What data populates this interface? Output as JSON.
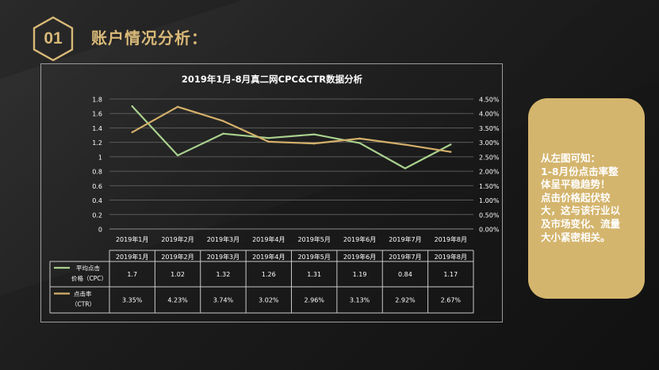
{
  "header": {
    "badge_number": "01",
    "title": "账户情况分析："
  },
  "chart_data": {
    "type": "line",
    "title": "2019年1月-8月真二网CPC&CTR数据分析",
    "categories": [
      "2019年1月",
      "2019年2月",
      "2019年3月",
      "2019年4月",
      "2019年5月",
      "2019年6月",
      "2019年7月",
      "2019年8月"
    ],
    "y_left": {
      "min": 0,
      "max": 1.8,
      "step": 0.2,
      "ticks": [
        "0",
        "0.2",
        "0.4",
        "0.6",
        "0.8",
        "1",
        "1.2",
        "1.4",
        "1.6",
        "1.8"
      ]
    },
    "y_right": {
      "min": 0,
      "max": 4.5,
      "step": 0.5,
      "unit": "%",
      "ticks": [
        "0.00%",
        "0.50%",
        "1.00%",
        "1.50%",
        "2.00%",
        "2.50%",
        "3.00%",
        "3.50%",
        "4.00%",
        "4.50%"
      ]
    },
    "grid": true,
    "series": [
      {
        "name": "平均点击价格（CPC）",
        "axis": "left",
        "color": "#a9d18e",
        "values": [
          1.7,
          1.02,
          1.32,
          1.26,
          1.31,
          1.19,
          0.84,
          1.17
        ]
      },
      {
        "name": "点击率（CTR）",
        "axis": "right",
        "color": "#d4b06a",
        "values": [
          3.35,
          4.23,
          3.74,
          3.02,
          2.96,
          3.13,
          2.92,
          2.67
        ]
      }
    ],
    "table": {
      "rows": [
        {
          "label_lines": [
            "平均点击",
            "价格（CPC）"
          ],
          "cells": [
            "1.7",
            "1.02",
            "1.32",
            "1.26",
            "1.31",
            "1.19",
            "0.84",
            "1.17"
          ]
        },
        {
          "label_lines": [
            "点击率",
            "（CTR）"
          ],
          "cells": [
            "3.35%",
            "4.23%",
            "3.74%",
            "3.02%",
            "2.96%",
            "3.13%",
            "2.92%",
            "2.67%"
          ]
        }
      ]
    }
  },
  "note": {
    "lines": [
      "从左图可知：",
      "1-8月份点击率整",
      "体呈平稳趋势！",
      "点击价格起伏较",
      "大，这与该行业以",
      "及市场变化、流量",
      "大小紧密相关。"
    ]
  },
  "colors": {
    "gold": "#d9b978",
    "note_bg": "#d4b56d",
    "cpc_line": "#a9d18e",
    "ctr_line": "#d4b06a"
  }
}
